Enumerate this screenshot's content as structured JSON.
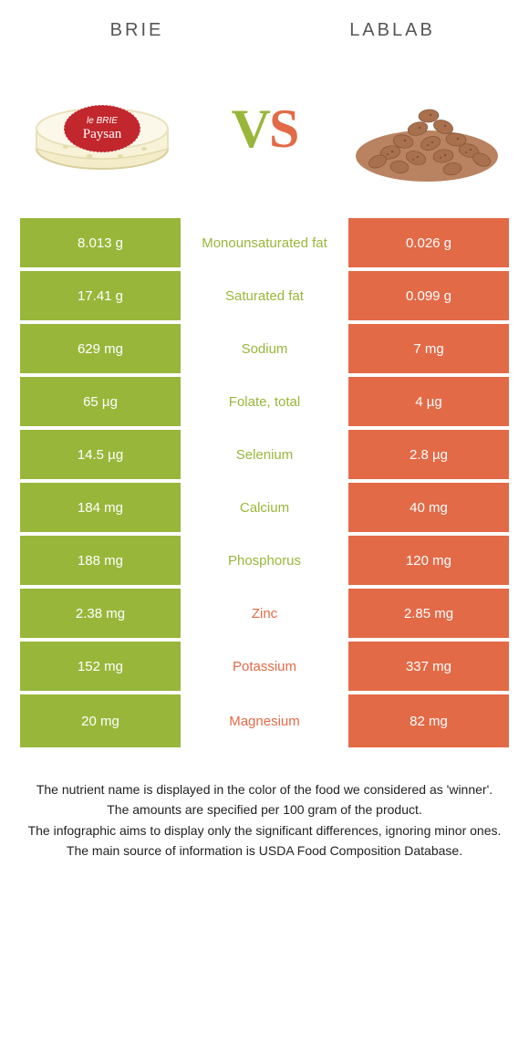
{
  "colors": {
    "left_bg": "#98b73a",
    "right_bg": "#e36a47",
    "mid_win_left": "#98b73a",
    "mid_win_right": "#e36a47"
  },
  "header": {
    "left_title": "BRIE",
    "right_title": "LABLAB",
    "vs_v": "V",
    "vs_s": "S",
    "brie_label_1": "le BRIE",
    "brie_label_2": "Paysan"
  },
  "rows": [
    {
      "label": "Monounsaturated fat",
      "left": "8.013 g",
      "right": "0.026 g",
      "winner": "left"
    },
    {
      "label": "Saturated fat",
      "left": "17.41 g",
      "right": "0.099 g",
      "winner": "left"
    },
    {
      "label": "Sodium",
      "left": "629 mg",
      "right": "7 mg",
      "winner": "left"
    },
    {
      "label": "Folate, total",
      "left": "65 µg",
      "right": "4 µg",
      "winner": "left"
    },
    {
      "label": "Selenium",
      "left": "14.5 µg",
      "right": "2.8 µg",
      "winner": "left"
    },
    {
      "label": "Calcium",
      "left": "184 mg",
      "right": "40 mg",
      "winner": "left"
    },
    {
      "label": "Phosphorus",
      "left": "188 mg",
      "right": "120 mg",
      "winner": "left"
    },
    {
      "label": "Zinc",
      "left": "2.38 mg",
      "right": "2.85 mg",
      "winner": "right"
    },
    {
      "label": "Potassium",
      "left": "152 mg",
      "right": "337 mg",
      "winner": "right"
    },
    {
      "label": "Magnesium",
      "left": "20 mg",
      "right": "82 mg",
      "winner": "right"
    }
  ],
  "footnotes": {
    "l1": "The nutrient name is displayed in the color of the food we considered as 'winner'.",
    "l2": "The amounts are specified per 100 gram of the product.",
    "l3": "The infographic aims to display only the significant differences, ignoring minor ones.",
    "l4": "The main source of information is USDA Food Composition Database."
  }
}
